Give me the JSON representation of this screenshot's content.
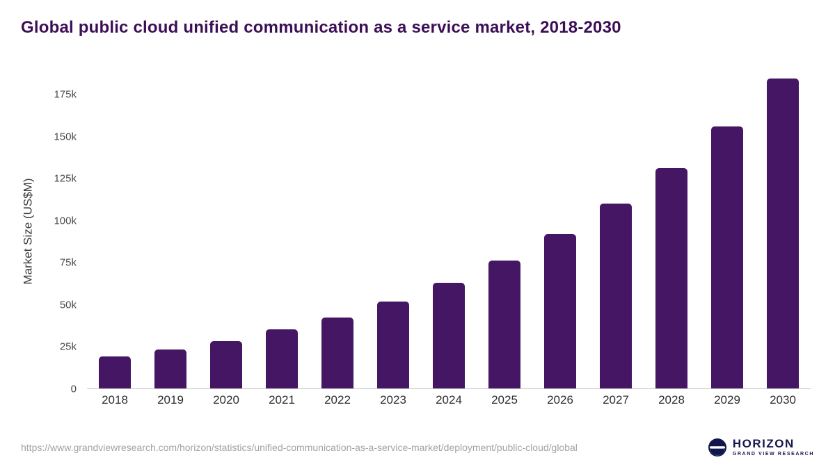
{
  "chart_data": {
    "type": "bar",
    "title": "Global public cloud unified communication as a service market, 2018-2030",
    "ylabel": "Market Size (US$M)",
    "xlabel": "",
    "categories": [
      "2018",
      "2019",
      "2020",
      "2021",
      "2022",
      "2023",
      "2024",
      "2025",
      "2026",
      "2027",
      "2028",
      "2029",
      "2030"
    ],
    "values": [
      19200,
      23300,
      28200,
      35000,
      42300,
      51900,
      62800,
      76100,
      91900,
      110100,
      131400,
      156200,
      184700
    ],
    "ylim": [
      0,
      190000
    ],
    "yticks": [
      {
        "value": 0,
        "label": "0"
      },
      {
        "value": 25000,
        "label": "25k"
      },
      {
        "value": 50000,
        "label": "50k"
      },
      {
        "value": 75000,
        "label": "75k"
      },
      {
        "value": 100000,
        "label": "100k"
      },
      {
        "value": 125000,
        "label": "125k"
      },
      {
        "value": 150000,
        "label": "150k"
      },
      {
        "value": 175000,
        "label": "175k"
      }
    ],
    "grid": false,
    "legend": false,
    "bar_color": "#451663"
  },
  "footer": {
    "source_url": "https://www.grandviewresearch.com/horizon/statistics/unified-communication-as-a-service-market/deployment/public-cloud/global"
  },
  "logo": {
    "name": "HORIZON",
    "subtitle": "GRAND VIEW RESEARCH",
    "icon": "horizon-circle-logo",
    "colors": {
      "circle": "#13164a",
      "wave": "#ffffff",
      "accent": "#35b5d9"
    }
  },
  "colors": {
    "title": "#3c0e56",
    "axis_line": "#c9c9c9",
    "tick_text": "#4a4a4a",
    "x_tick_text": "#2e2e2e"
  }
}
